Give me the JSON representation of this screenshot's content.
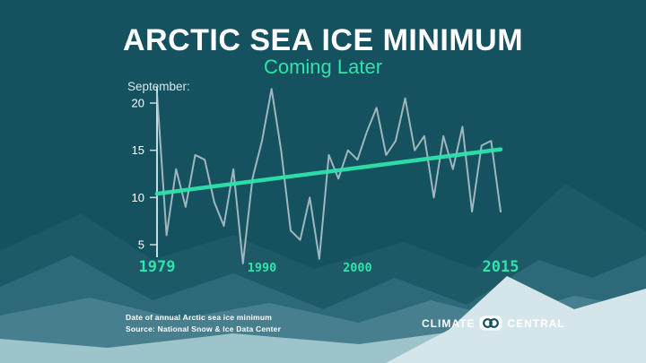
{
  "colors": {
    "background": "#15525f",
    "accent_mint": "#2fe3ab",
    "data_line": "#b9c8ce",
    "axis": "#dfe9ec",
    "text": "#ffffff"
  },
  "header": {
    "title": "ARCTIC SEA ICE MINIMUM",
    "subtitle": "Coming Later"
  },
  "chart_data": {
    "type": "line",
    "title": "ARCTIC SEA ICE MINIMUM",
    "subtitle": "Coming Later",
    "ylabel": "September:",
    "xlabel": "",
    "grid": false,
    "legend": "none",
    "ylim": [
      2,
      22
    ],
    "xlim": [
      1979,
      2015
    ],
    "y_ticks": [
      20,
      15,
      10,
      5
    ],
    "x_label_ticks": [
      1979,
      1990,
      2000,
      2015
    ],
    "x_label_major": [
      1979,
      2015
    ],
    "years": [
      1979,
      1980,
      1981,
      1982,
      1983,
      1984,
      1985,
      1986,
      1987,
      1988,
      1989,
      1990,
      1991,
      1992,
      1993,
      1994,
      1995,
      1996,
      1997,
      1998,
      1999,
      2000,
      2001,
      2002,
      2003,
      2004,
      2005,
      2006,
      2007,
      2008,
      2009,
      2010,
      2011,
      2012,
      2013,
      2014,
      2015
    ],
    "series": [
      {
        "name": "date-of-annual-minimum-september-day",
        "color": "#b9c8ce",
        "values": [
          21,
          6,
          13,
          9,
          14.5,
          14,
          9.5,
          7,
          13,
          3,
          12,
          16,
          21.5,
          15,
          6.5,
          5.5,
          10,
          3.5,
          14.5,
          12,
          15,
          14,
          17,
          19.5,
          14.5,
          16,
          20.5,
          15,
          16.5,
          10,
          16.5,
          13,
          17.5,
          8.5,
          15.5,
          16,
          8.5
        ]
      },
      {
        "name": "trend",
        "color": "#2fe3ab",
        "x": [
          1979,
          2015
        ],
        "values": [
          10.4,
          15.1
        ]
      }
    ]
  },
  "footer": {
    "caption_line1": "Date of annual Arctic sea ice minimum",
    "caption_line2": "Source: National Snow & Ice Data Center",
    "brand_left": "CLIMATE",
    "brand_right": "CENTRAL"
  }
}
